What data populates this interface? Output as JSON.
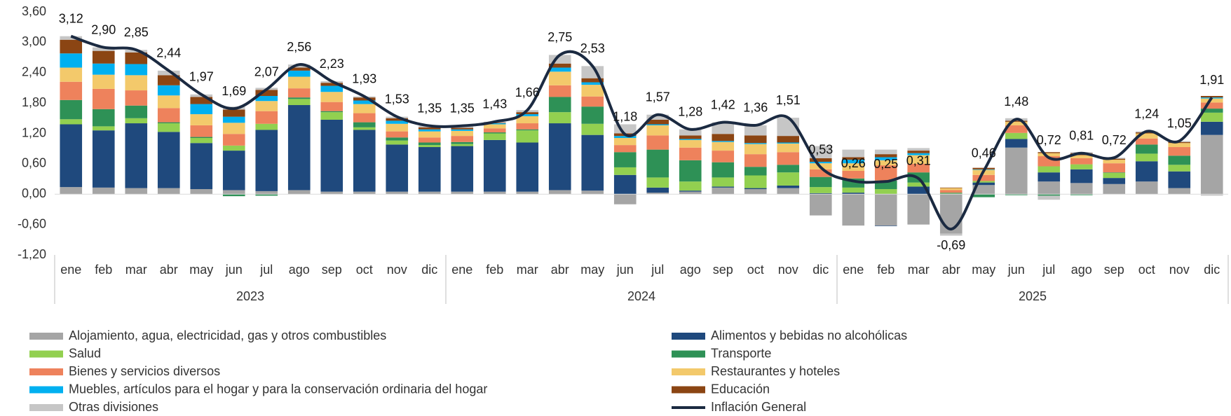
{
  "chart_data": {
    "type": "bar",
    "stacked": true,
    "categories": [
      "ene",
      "feb",
      "mar",
      "abr",
      "may",
      "jun",
      "jul",
      "ago",
      "sep",
      "oct",
      "nov",
      "dic",
      "ene",
      "feb",
      "mar",
      "abr",
      "may",
      "jun",
      "jul",
      "ago",
      "sep",
      "oct",
      "nov",
      "dic",
      "ene",
      "feb",
      "mar",
      "abr",
      "may",
      "jun",
      "jul",
      "ago",
      "sep",
      "oct",
      "nov",
      "dic"
    ],
    "x_groups": [
      "2023",
      "2024",
      "2025"
    ],
    "ylim": [
      -1.2,
      3.6
    ],
    "yticks": [
      {
        "value": -1.2,
        "label": "-1,20"
      },
      {
        "value": -0.6,
        "label": "-0,60"
      },
      {
        "value": 0,
        "label": "0,00"
      },
      {
        "value": 0.6,
        "label": "0,60"
      },
      {
        "value": 1.2,
        "label": "1,20"
      },
      {
        "value": 1.8,
        "label": "1,80"
      },
      {
        "value": 2.4,
        "label": "2,40"
      },
      {
        "value": 3,
        "label": "3,00"
      },
      {
        "value": 3.6,
        "label": "3,60"
      }
    ],
    "series": [
      {
        "name": "Alojamiento, agua, electricidad, gas y otros combustibles",
        "color": "#a5a5a5",
        "values": [
          0.14,
          0.13,
          0.12,
          0.12,
          0.1,
          0.08,
          0.06,
          0.08,
          0.05,
          0.05,
          0.05,
          0.05,
          0.05,
          0.05,
          0.05,
          0.08,
          0.07,
          -0.2,
          0.03,
          0.05,
          0.13,
          0.1,
          0.12,
          -0.42,
          -0.62,
          -0.62,
          -0.6,
          -0.78,
          0.18,
          0.92,
          0.25,
          0.22,
          0.2,
          0.25,
          0.12,
          1.17
        ]
      },
      {
        "name": "Alimentos y bebidas no alcohólicas",
        "color": "#1f497d",
        "values": [
          1.24,
          1.13,
          1.28,
          1.11,
          0.91,
          0.78,
          1.21,
          1.68,
          1.42,
          1.22,
          0.93,
          0.88,
          0.9,
          1.02,
          0.97,
          1.32,
          1.1,
          0.38,
          0.1,
          0.02,
          0.02,
          0.02,
          0.05,
          0.02,
          0.03,
          -0.01,
          0.15,
          0.01,
          0.05,
          0.17,
          0.18,
          0.27,
          0.12,
          0.4,
          0.33,
          0.26
        ]
      },
      {
        "name": "Salud",
        "color": "#92d050",
        "values": [
          0.1,
          0.08,
          0.1,
          0.17,
          0.1,
          0.1,
          0.12,
          0.12,
          0.15,
          0.05,
          0.08,
          0.04,
          0.04,
          0.13,
          0.24,
          0.22,
          0.22,
          0.15,
          0.2,
          0.18,
          0.18,
          0.25,
          0.26,
          0.12,
          0.1,
          0.1,
          0.08,
          0.01,
          0.03,
          0.12,
          0.12,
          0.1,
          0.1,
          0.15,
          0.13,
          0.18
        ]
      },
      {
        "name": "Transporte",
        "color": "#2e9156",
        "values": [
          0.38,
          0.34,
          0.25,
          0.02,
          0.02,
          -0.04,
          -0.03,
          0.03,
          0.02,
          0.1,
          0.06,
          0.05,
          0.04,
          0.02,
          0.02,
          0.3,
          0.34,
          0.3,
          0.55,
          0.42,
          0.3,
          0.17,
          0.15,
          0.2,
          0.18,
          0.17,
          0.2,
          0.01,
          -0.06,
          -0.02,
          -0.03,
          -0.02,
          0.01,
          0.18,
          0.18,
          0.08
        ]
      },
      {
        "name": "Bienes y servicios diversos",
        "color": "#ee825c",
        "values": [
          0.36,
          0.4,
          0.3,
          0.28,
          0.23,
          0.23,
          0.25,
          0.18,
          0.18,
          0.18,
          0.12,
          0.1,
          0.12,
          0.08,
          0.12,
          0.23,
          0.2,
          0.14,
          0.28,
          0.25,
          0.23,
          0.25,
          0.25,
          0.15,
          0.15,
          0.3,
          0.17,
          0.05,
          0.12,
          0.15,
          0.2,
          0.12,
          0.18,
          0.12,
          0.17,
          0.12
        ]
      },
      {
        "name": "Restaurantes y hoteles",
        "color": "#f3c96b",
        "values": [
          0.28,
          0.28,
          0.3,
          0.25,
          0.22,
          0.22,
          0.2,
          0.23,
          0.2,
          0.18,
          0.15,
          0.12,
          0.1,
          0.08,
          0.14,
          0.27,
          0.23,
          0.14,
          0.2,
          0.15,
          0.17,
          0.2,
          0.17,
          0.12,
          0.15,
          0.1,
          0.17,
          0.04,
          0.1,
          0.07,
          0.06,
          0.06,
          0.07,
          0.1,
          0.08,
          0.08
        ]
      },
      {
        "name": "Muebles, artículos para el hogar y para la conservación ordinaria del hogar",
        "color": "#00b0f0",
        "values": [
          0.28,
          0.22,
          0.22,
          0.2,
          0.2,
          0.12,
          0.1,
          0.12,
          0.12,
          0.07,
          0.06,
          0.04,
          0.03,
          0.02,
          0.04,
          0.08,
          0.05,
          0.04,
          0.02,
          0.02,
          0.02,
          0.02,
          0.02,
          0.03,
          0.07,
          0.06,
          0.04,
          0.0,
          0.01,
          0.0,
          0.0,
          0.0,
          0.0,
          0.0,
          0.0,
          0.02
        ]
      },
      {
        "name": "Educación",
        "color": "#8b4513",
        "values": [
          0.27,
          0.25,
          0.23,
          0.2,
          0.14,
          0.14,
          0.12,
          0.06,
          0.06,
          0.06,
          0.05,
          0.04,
          0.03,
          0.01,
          0.04,
          0.08,
          0.08,
          0.05,
          0.09,
          0.07,
          0.14,
          0.15,
          0.13,
          0.07,
          0.05,
          0.06,
          0.05,
          0.01,
          0.03,
          0.02,
          0.02,
          0.04,
          0.02,
          0.02,
          0.02,
          0.03
        ]
      },
      {
        "name": "Otras divisiones",
        "color": "#c6c6c6",
        "values": [
          0.07,
          0.07,
          0.05,
          0.09,
          0.05,
          0.06,
          0.04,
          0.06,
          0.03,
          0.02,
          0.03,
          0.03,
          0.04,
          0.02,
          0.04,
          0.17,
          0.24,
          0.18,
          0.1,
          0.12,
          0.23,
          0.2,
          0.36,
          0.24,
          0.15,
          0.09,
          0.05,
          -0.04,
          0.0,
          0.05,
          -0.08,
          0.02,
          0.02,
          0.02,
          0.02,
          -0.03
        ]
      },
      {
        "name": "Inflación General",
        "color": "#1b2a41",
        "type": "line",
        "values": [
          3.12,
          2.9,
          2.85,
          2.44,
          1.97,
          1.69,
          2.07,
          2.56,
          2.23,
          1.93,
          1.53,
          1.35,
          1.35,
          1.43,
          1.66,
          2.75,
          2.53,
          1.18,
          1.57,
          1.28,
          1.42,
          1.36,
          1.51,
          0.53,
          0.26,
          0.25,
          0.31,
          -0.69,
          0.46,
          1.48,
          0.72,
          0.81,
          0.72,
          1.24,
          1.05,
          1.91
        ],
        "value_labels": [
          "3,12",
          "2,90",
          "2,85",
          "2,44",
          "1,97",
          "1,69",
          "2,07",
          "2,56",
          "2,23",
          "1,93",
          "1,53",
          "1,35",
          "1,35",
          "1,43",
          "1,66",
          "2,75",
          "2,53",
          "1,18",
          "1,57",
          "1,28",
          "1,42",
          "1,36",
          "1,51",
          "0,53",
          "0,26",
          "0,25",
          "0,31",
          "-0,69",
          "0,46",
          "1,48",
          "0,72",
          "0,81",
          "0,72",
          "1,24",
          "1,05",
          "1,91"
        ]
      }
    ],
    "legend": "bottom"
  }
}
